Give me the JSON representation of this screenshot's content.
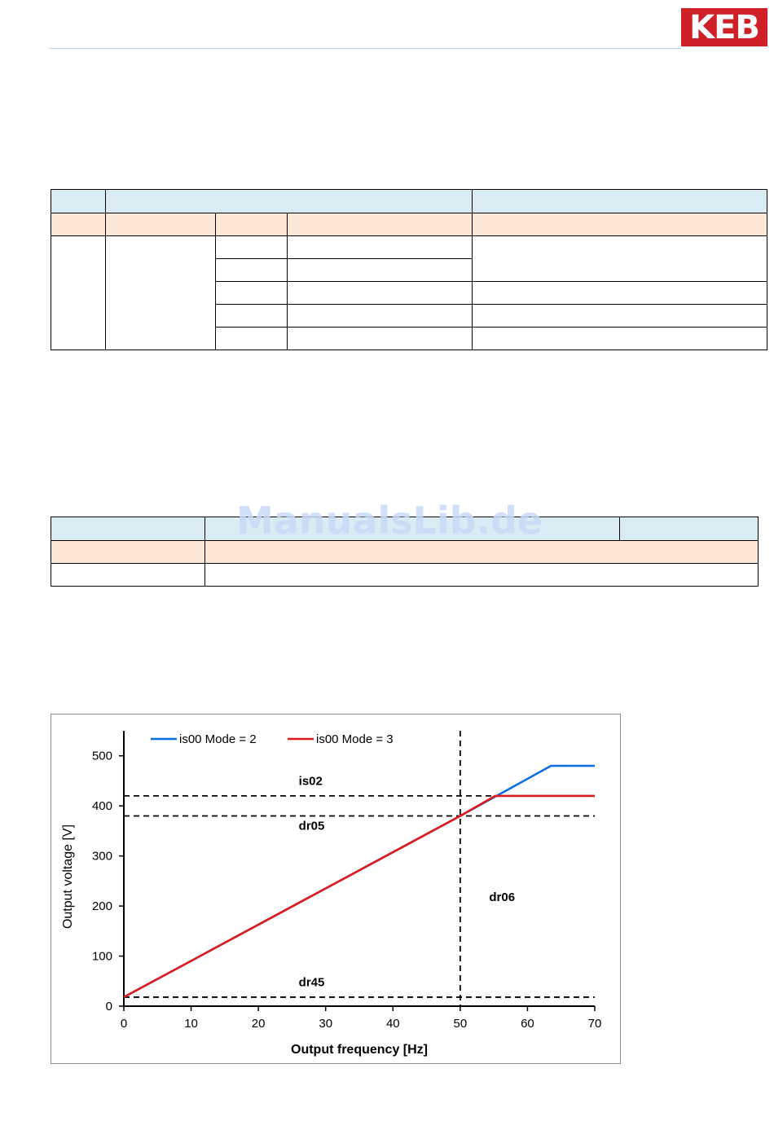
{
  "header": {
    "logo_text": "KEB",
    "logo_color": "#cf2027",
    "rule_color": "#b9d6e0"
  },
  "table1": {
    "header_color": "#d9ecf3",
    "subheader_color": "#fde8d8",
    "rows": 7
  },
  "table2": {
    "rows": 3
  },
  "watermark": "ManualsLib.de",
  "chart_data": {
    "type": "line",
    "xlabel": "Output frequency [Hz]",
    "ylabel": "Output voltage [V]",
    "xlim": [
      0,
      70
    ],
    "ylim": [
      0,
      550
    ],
    "xticks": [
      0,
      10,
      20,
      30,
      40,
      50,
      60,
      70
    ],
    "yticks": [
      0,
      100,
      200,
      300,
      400,
      500
    ],
    "grid": false,
    "legend_position": "top-left",
    "series": [
      {
        "name": "is00 Mode = 2",
        "color": "#0a6ee6",
        "x": [
          0,
          50,
          63.5,
          70
        ],
        "y": [
          18,
          380,
          480,
          480
        ]
      },
      {
        "name": "is00 Mode = 3",
        "color": "#e01a1a",
        "x": [
          0,
          50,
          55.2,
          70
        ],
        "y": [
          18,
          380,
          420,
          420
        ]
      }
    ],
    "reference_lines": [
      {
        "label": "is02",
        "orientation": "horizontal",
        "value": 420,
        "label_x": 26,
        "label_y": 442
      },
      {
        "label": "dr05",
        "orientation": "horizontal",
        "value": 380,
        "label_x": 26,
        "label_y": 352
      },
      {
        "label": "dr45",
        "orientation": "horizontal",
        "value": 18,
        "label_x": 26,
        "label_y": 40
      },
      {
        "label": "dr06",
        "orientation": "vertical",
        "value": 50,
        "label_x": 54.3,
        "label_y": 210
      }
    ]
  }
}
